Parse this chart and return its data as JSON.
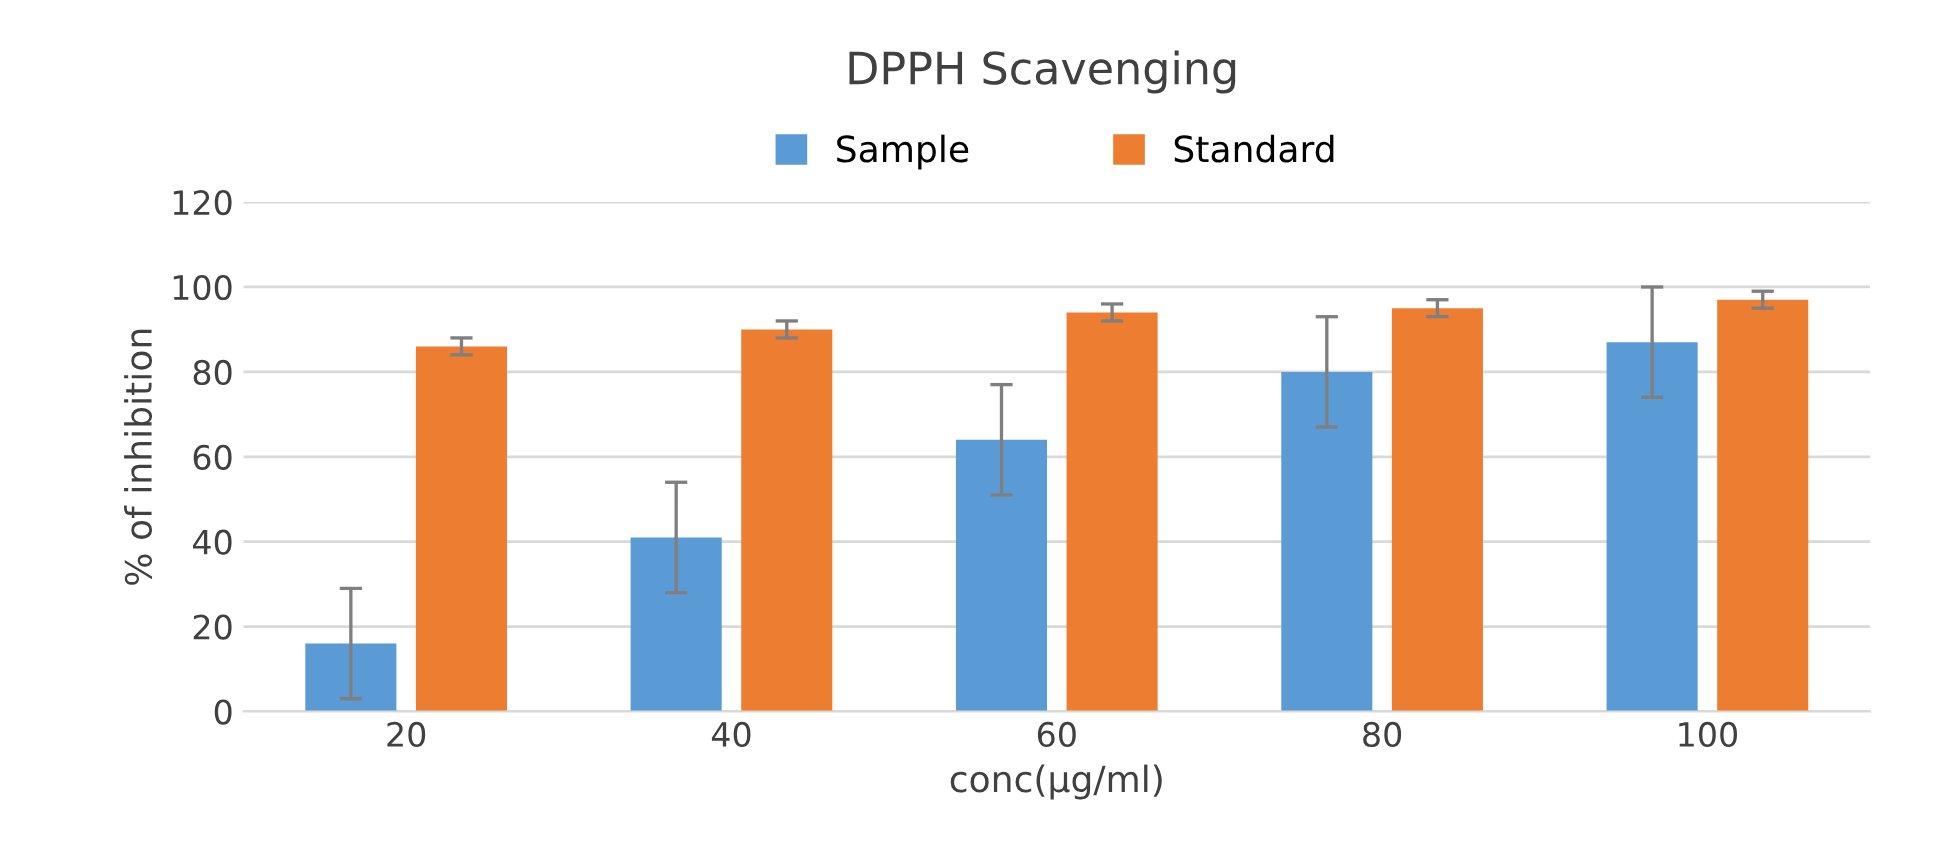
{
  "chart_data": {
    "type": "bar",
    "title": "DPPH Scavenging",
    "xlabel": "conc(µg/ml)",
    "ylabel": "% of inhibition",
    "categories": [
      "20",
      "40",
      "60",
      "80",
      "100"
    ],
    "series": [
      {
        "name": "Sample",
        "color": "#5b9bd5",
        "values": [
          16,
          41,
          64,
          80,
          87
        ],
        "errors": [
          13,
          13,
          13,
          13,
          13
        ]
      },
      {
        "name": "Standard",
        "color": "#ed7d31",
        "values": [
          86,
          90,
          94,
          95,
          97
        ],
        "errors": [
          2,
          2,
          2,
          2,
          2
        ]
      }
    ],
    "ylim": [
      0,
      120
    ],
    "yticks": [
      0,
      20,
      40,
      60,
      80,
      100,
      120
    ],
    "grid": "y",
    "legend": "top"
  }
}
